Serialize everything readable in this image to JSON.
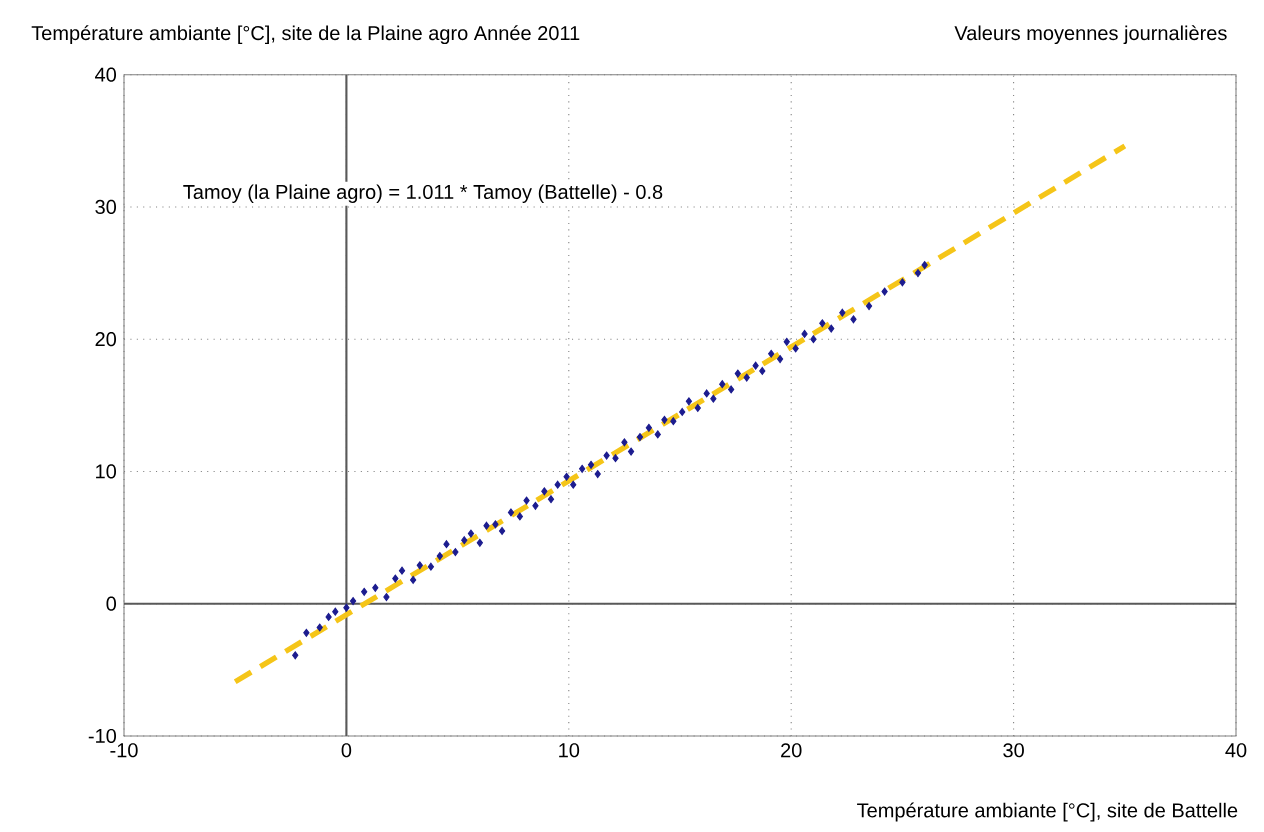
{
  "chart_data": {
    "type": "scatter",
    "ylabel": "Température ambiante [°C], site de la Plaine agro   Année 2011",
    "subtitle": "Valeurs moyennes journalières",
    "xlabel": "Température ambiante [°C], site de Battelle",
    "annotations": [
      "Tamoy (la Plaine agro) = 1.011 * Tamoy (Battelle)  - 0.8"
    ],
    "xlim": [
      -10,
      40
    ],
    "ylim": [
      -10,
      40
    ],
    "xticks": [
      -10,
      0,
      10,
      20,
      30,
      40
    ],
    "yticks": [
      -10,
      0,
      10,
      20,
      30,
      40
    ],
    "grid": true,
    "marker": "diamond",
    "series": [
      {
        "color": "#1c1c8f",
        "x": [
          -2.3,
          -1.8,
          -1.2,
          -0.8,
          -0.5,
          0.0,
          0.3,
          0.8,
          1.3,
          1.8,
          2.2,
          2.5,
          3.0,
          3.3,
          3.8,
          4.2,
          4.5,
          4.9,
          5.3,
          5.6,
          6.0,
          6.3,
          6.7,
          7.0,
          7.4,
          7.8,
          8.1,
          8.5,
          8.9,
          9.2,
          9.5,
          9.9,
          10.2,
          10.6,
          11.0,
          11.3,
          11.7,
          12.1,
          12.5,
          12.8,
          13.2,
          13.6,
          14.0,
          14.3,
          14.7,
          15.1,
          15.4,
          15.8,
          16.2,
          16.5,
          16.9,
          17.3,
          17.6,
          18.0,
          18.4,
          18.7,
          19.1,
          19.5,
          19.8,
          20.2,
          20.6,
          21.0,
          21.4,
          21.8,
          22.3,
          22.8,
          23.5,
          24.2,
          25.0,
          25.7,
          26.0
        ],
        "values": [
          -3.9,
          -2.2,
          -1.8,
          -1.0,
          -0.6,
          -0.3,
          0.2,
          0.9,
          1.2,
          0.5,
          1.9,
          2.5,
          1.8,
          2.9,
          2.8,
          3.6,
          4.5,
          3.9,
          4.8,
          5.3,
          4.6,
          5.9,
          6.0,
          5.5,
          6.9,
          6.6,
          7.8,
          7.4,
          8.5,
          7.9,
          9.0,
          9.6,
          9.0,
          10.2,
          10.5,
          9.8,
          11.2,
          11.0,
          12.2,
          11.5,
          12.6,
          13.3,
          12.8,
          13.9,
          13.8,
          14.5,
          15.3,
          14.8,
          15.9,
          15.5,
          16.6,
          16.2,
          17.4,
          17.1,
          18.0,
          17.6,
          18.9,
          18.5,
          19.8,
          19.3,
          20.4,
          20.0,
          21.2,
          20.8,
          22.0,
          21.5,
          22.5,
          23.6,
          24.3,
          25.0,
          25.6
        ]
      },
      {
        "type": "line",
        "color": "#f5c518",
        "line_style": "dashed",
        "marker": "none",
        "x": [
          -5,
          35
        ],
        "values": [
          -5.9,
          34.6
        ]
      }
    ]
  }
}
